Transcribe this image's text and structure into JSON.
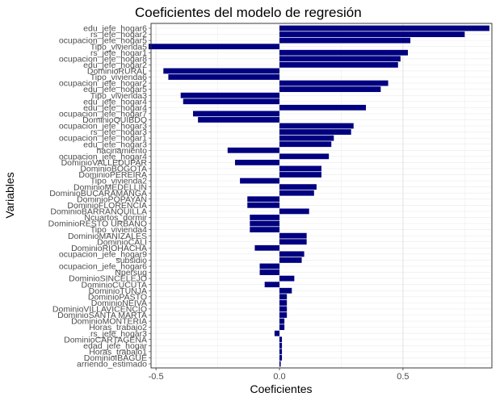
{
  "chart_data": {
    "type": "bar",
    "orientation": "horizontal",
    "title": "Coeficientes del modelo de regresión",
    "xlabel": "Coeficientes",
    "ylabel": "Variables",
    "xlim": [
      -0.52,
      0.86
    ],
    "xticks": [
      -0.5,
      0.0,
      0.5
    ],
    "xtick_labels": [
      "-0.5",
      "0.0",
      "0.5"
    ],
    "grid": true,
    "bar_color": "#000080",
    "categories": [
      "edu_jefe_hogar6",
      "rs_jefe_hogar2",
      "ocupacion_jefe_hogar5",
      "Tipo_vivienda5",
      "rs_jefe_hogar1",
      "ocupacion_jefe_hogar8",
      "edu_jefe_hogar2",
      "DominioRURAL",
      "Tipo_vivienda6",
      "ocupacion_jefe_hogar2",
      "edu_jefe_hogar5",
      "Tipo_vivienda3",
      "edu_jefe_hogar4",
      "edu_jefe_hogar4",
      "ocupacion_jefe_hogar7",
      "DominioQUIBDO",
      "ocupacion_jefe_hogar3",
      "rs_jefe_hogar3",
      "ocupacion_jefe_hogar1",
      "edu_jefe_hogar3",
      "hacinamiento",
      "ocupacion_jefe_hogar4",
      "DominioVALLEDUPAR",
      "DominioBOGOTA",
      "DominioPEREIRA",
      "Tipo_vivienda2",
      "DominioMEDELLIN",
      "DominioBUCARAMANGA",
      "DominioPOPAYAN",
      "DominioFLORENCIA",
      "DominioBARRANQUILLA",
      "Ncuartos_dormir",
      "DominioRESTO URBANO",
      "Tipo_vivienda4",
      "DominioMANIZALES",
      "DominioCALI",
      "DominioRIOHACHA",
      "ocupacion_jefe_hogar9",
      "subsidio",
      "ocupacion_jefe_hogar6",
      "Npersug",
      "DominioSINCELEJO",
      "DominioCUCUTA",
      "DominioTUNJA",
      "DominioPASTO",
      "DominioNEIVA",
      "DominioVILLAVICENCIO",
      "DominioSANTA MARTA",
      "DominioMONTERIA",
      "Horas_trabajo2",
      "rs_jefe_hogar3",
      "DominioCARTAGENA",
      "edad_jefe_hogar",
      "Horas_trabajo1",
      "DominioIBAGUE",
      "arriendo_estimado"
    ],
    "values": [
      0.85,
      0.75,
      0.53,
      -0.53,
      0.52,
      0.49,
      0.48,
      -0.47,
      -0.45,
      0.44,
      0.41,
      -0.4,
      -0.39,
      0.35,
      -0.35,
      -0.33,
      0.3,
      0.29,
      0.22,
      0.21,
      -0.21,
      0.2,
      -0.18,
      0.17,
      0.17,
      -0.16,
      0.15,
      0.14,
      -0.13,
      -0.13,
      0.12,
      -0.12,
      -0.12,
      -0.12,
      0.11,
      0.11,
      -0.1,
      0.1,
      0.09,
      -0.08,
      -0.08,
      0.06,
      -0.06,
      0.05,
      0.03,
      0.03,
      0.03,
      0.03,
      0.02,
      0.02,
      -0.02,
      0.01,
      0.01,
      0.01,
      0.01,
      0.005
    ]
  }
}
